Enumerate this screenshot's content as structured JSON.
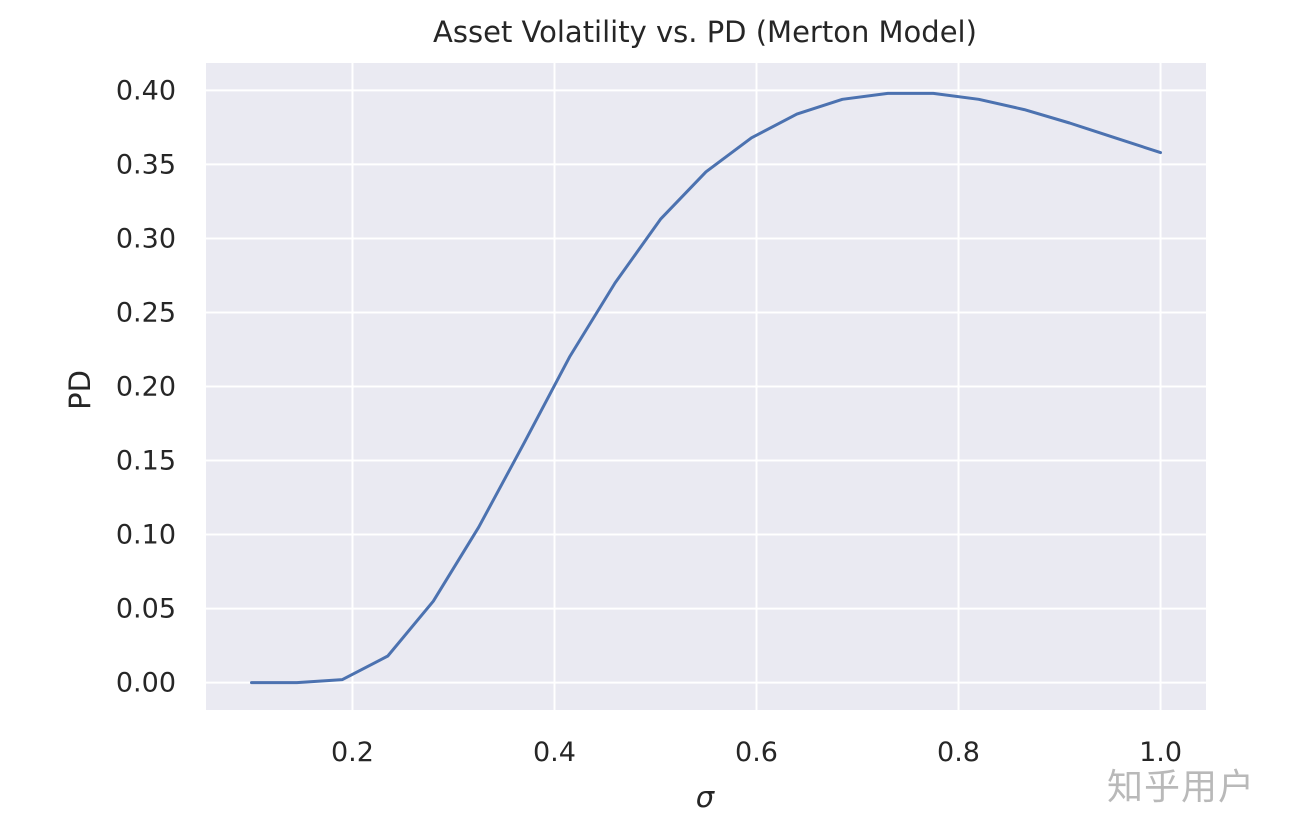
{
  "watermark": "知乎用户",
  "chart_data": {
    "type": "line",
    "title": "Asset Volatility vs. PD (Merton Model)",
    "xlabel": "σ",
    "ylabel": "PD",
    "xlim": [
      0.055,
      1.045
    ],
    "ylim": [
      -0.0185,
      0.4185
    ],
    "xticks": [
      0.2,
      0.4,
      0.6,
      0.8,
      1.0
    ],
    "xtick_labels": [
      "0.2",
      "0.4",
      "0.6",
      "0.8",
      "1.0"
    ],
    "yticks": [
      0.0,
      0.05,
      0.1,
      0.15,
      0.2,
      0.25,
      0.3,
      0.35,
      0.4
    ],
    "ytick_labels": [
      "0.00",
      "0.05",
      "0.10",
      "0.15",
      "0.20",
      "0.25",
      "0.30",
      "0.35",
      "0.40"
    ],
    "grid": true,
    "background": "#eaeaf2",
    "line_color": "#4c72b0",
    "series": [
      {
        "x": [
          0.1,
          0.145,
          0.19,
          0.235,
          0.28,
          0.325,
          0.37,
          0.415,
          0.46,
          0.505,
          0.55,
          0.595,
          0.64,
          0.685,
          0.73,
          0.775,
          0.82,
          0.865,
          0.91,
          0.955,
          1.0
        ],
        "values": [
          0.0,
          0.0,
          0.002,
          0.018,
          0.055,
          0.105,
          0.162,
          0.22,
          0.27,
          0.313,
          0.345,
          0.368,
          0.384,
          0.394,
          0.398,
          0.398,
          0.394,
          0.387,
          0.378,
          0.368,
          0.358
        ]
      }
    ]
  }
}
